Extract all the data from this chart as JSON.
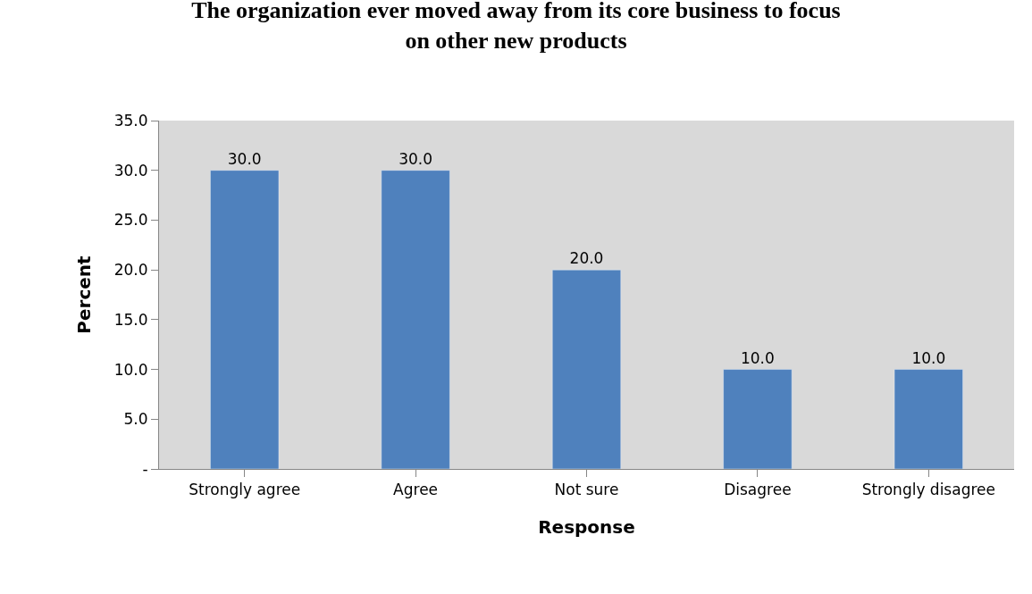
{
  "chart_data": {
    "type": "bar",
    "title": "The organization ever moved away from its core business to focus\non other new products",
    "xlabel": "Response",
    "ylabel": "Percent",
    "categories": [
      "Strongly agree",
      "Agree",
      "Not sure",
      "Disagree",
      "Strongly disagree"
    ],
    "values": [
      30,
      30,
      20,
      10,
      10
    ],
    "value_labels": [
      "30.0",
      "30.0",
      "20.0",
      "10.0",
      "10.0"
    ],
    "color": "#4f81bd",
    "ylim": [
      0,
      35
    ],
    "yticks": [
      {
        "value": 0,
        "label": "-"
      },
      {
        "value": 5,
        "label": "5.0"
      },
      {
        "value": 10,
        "label": "10.0"
      },
      {
        "value": 15,
        "label": "15.0"
      },
      {
        "value": 20,
        "label": "20.0"
      },
      {
        "value": 25,
        "label": "25.0"
      },
      {
        "value": 30,
        "label": "30.0"
      },
      {
        "value": 35,
        "label": "35.0"
      }
    ],
    "grid": false
  }
}
